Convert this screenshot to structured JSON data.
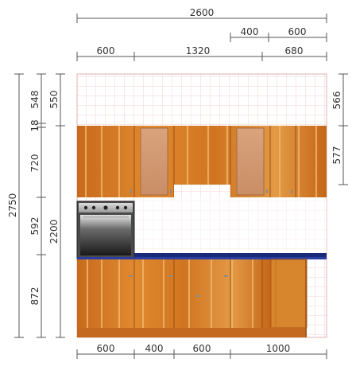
{
  "top_dimensions": {
    "overall": "2600",
    "upper_right_a": "400",
    "upper_right_b": "600",
    "row_a": "600",
    "row_b": "1320",
    "row_c": "680"
  },
  "bottom_dimensions": {
    "a": "600",
    "b": "400",
    "c": "600",
    "d": "1000"
  },
  "left_dimensions": {
    "total_height": "2750",
    "wall_to_top": "548",
    "gap": "18",
    "upper_cabinet": "720",
    "backsplash": "592",
    "base_cabinet": "872",
    "above_cabinets": "550",
    "floor_to_top": "2200"
  },
  "right_dimensions": {
    "top_gap": "566",
    "upper_cabinet_side": "577"
  },
  "colors": {
    "wood": "#d9822b",
    "wood_dark": "#b8601a",
    "wood_light": "#e8a860",
    "frosted_panel": "#d7a07a",
    "countertop": "#1a2a7a",
    "tile_line": "#f0c8c8",
    "oven_steel": "#555555"
  }
}
